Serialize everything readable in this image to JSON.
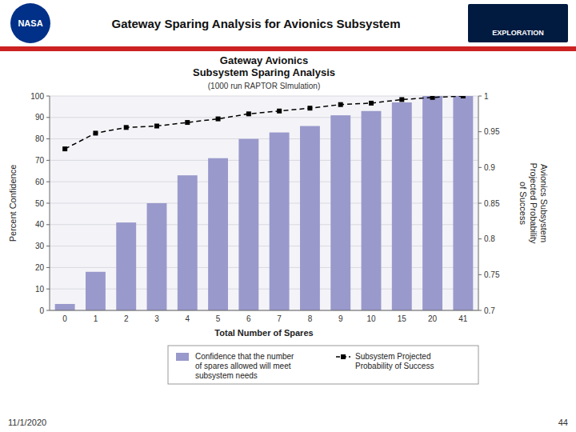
{
  "chart_data": {
    "type": "bar",
    "title": "Gateway Avionics\nSubsystem Sparing Analysis",
    "subtitle": "(1000 run RAPTOR SImulation)",
    "x_label": "Total Number of Spares",
    "y_label": "Percent Confidence",
    "y2_label": "Avionics Subsystem\nProjected Probability\nof Success",
    "categories": [
      "0",
      "1",
      "2",
      "3",
      "4",
      "5",
      "6",
      "7",
      "8",
      "9",
      "10",
      "15",
      "20",
      "41"
    ],
    "series": [
      {
        "name": "Confidence that the number\nof spares allowed will meet\nsubsystem needs",
        "type": "bar",
        "color": "#9999cc",
        "values": [
          3,
          18,
          41,
          50,
          63,
          71,
          80,
          83,
          86,
          91,
          93,
          97,
          100,
          100
        ]
      },
      {
        "name": "Subsystem Projected\nProbability of Success",
        "type": "line",
        "axis": "y2",
        "color": "#000000",
        "marker": "square",
        "line_style": "dashed",
        "values": [
          0.926,
          0.948,
          0.956,
          0.958,
          0.963,
          0.968,
          0.975,
          0.979,
          0.983,
          0.988,
          0.99,
          0.995,
          0.998,
          1
        ]
      }
    ],
    "ylim": [
      0,
      100
    ],
    "yticks": [
      0,
      10,
      20,
      30,
      40,
      50,
      60,
      70,
      80,
      90,
      100
    ],
    "y2lim": [
      0.7,
      1
    ],
    "y2ticks": [
      0.7,
      0.75,
      0.8,
      0.85,
      0.9,
      0.95,
      1
    ],
    "grid": true,
    "legend": "bottom",
    "annotations": [
      "Gateway Sparing Analysis for Avionics Subsystem",
      "NASA",
      "EXPLORATION",
      "11/1/2020",
      "44"
    ]
  }
}
